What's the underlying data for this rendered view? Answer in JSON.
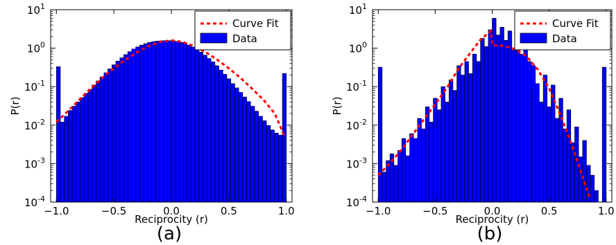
{
  "colors": {
    "bar": "#0000ff",
    "fit": "#ff0000"
  },
  "chart_data": [
    {
      "type": "bar",
      "panel_label": "(a)",
      "xlabel": "Reciprocity (r)",
      "ylabel": "P(r)",
      "xlim": [
        -1.05,
        1.05
      ],
      "ylim": [
        0.0001,
        10
      ],
      "yscale": "log",
      "xticks": [
        "−1.0",
        "−0.5",
        "0.0",
        "0.5",
        "1.0"
      ],
      "yticks": [
        {
          "base": "10",
          "exp": "-4"
        },
        {
          "base": "10",
          "exp": "-3"
        },
        {
          "base": "10",
          "exp": "-2"
        },
        {
          "base": "10",
          "exp": "-1"
        },
        {
          "base": "10",
          "exp": "0"
        },
        {
          "base": "10",
          "exp": "1"
        }
      ],
      "legend": {
        "position": "top-right",
        "fit_label": "Curve Fit",
        "data_label": "Data"
      },
      "bin_width": 0.0345,
      "bins_x": [
        -1.0,
        -0.966,
        -0.931,
        -0.897,
        -0.862,
        -0.828,
        -0.793,
        -0.759,
        -0.724,
        -0.69,
        -0.655,
        -0.621,
        -0.586,
        -0.552,
        -0.517,
        -0.483,
        -0.448,
        -0.414,
        -0.379,
        -0.345,
        -0.31,
        -0.276,
        -0.241,
        -0.207,
        -0.172,
        -0.138,
        -0.103,
        -0.069,
        -0.034,
        0.0,
        0.034,
        0.069,
        0.103,
        0.138,
        0.172,
        0.207,
        0.241,
        0.276,
        0.31,
        0.345,
        0.379,
        0.414,
        0.448,
        0.483,
        0.517,
        0.552,
        0.586,
        0.621,
        0.655,
        0.69,
        0.724,
        0.759,
        0.793,
        0.828,
        0.862,
        0.897,
        0.931,
        0.966
      ],
      "bins_y": [
        0.33,
        0.012,
        0.017,
        0.024,
        0.031,
        0.04,
        0.052,
        0.067,
        0.085,
        0.11,
        0.14,
        0.18,
        0.23,
        0.29,
        0.37,
        0.46,
        0.56,
        0.68,
        0.81,
        0.95,
        1.08,
        1.2,
        1.31,
        1.41,
        1.48,
        1.53,
        1.56,
        1.57,
        1.57,
        1.55,
        1.5,
        1.42,
        1.32,
        1.2,
        1.07,
        0.93,
        0.79,
        0.66,
        0.54,
        0.44,
        0.35,
        0.27,
        0.21,
        0.16,
        0.12,
        0.093,
        0.071,
        0.054,
        0.041,
        0.031,
        0.023,
        0.017,
        0.013,
        0.0098,
        0.0075,
        0.0062,
        0.0055,
        0.22
      ],
      "fit_x": [
        -1.0,
        -0.9,
        -0.8,
        -0.7,
        -0.6,
        -0.5,
        -0.4,
        -0.3,
        -0.2,
        -0.1,
        0.0,
        0.1,
        0.2,
        0.3,
        0.4,
        0.5,
        0.6,
        0.7,
        0.8,
        0.9,
        0.98
      ],
      "fit_y": [
        0.012,
        0.023,
        0.046,
        0.09,
        0.17,
        0.3,
        0.5,
        0.78,
        1.12,
        1.45,
        1.6,
        1.45,
        1.12,
        0.78,
        0.5,
        0.3,
        0.17,
        0.09,
        0.046,
        0.02,
        0.0055
      ]
    },
    {
      "type": "bar",
      "panel_label": "(b)",
      "xlabel": "Reciprocity (r)",
      "ylabel": "P(r)",
      "xlim": [
        -1.05,
        1.05
      ],
      "ylim": [
        0.0001,
        10
      ],
      "yscale": "log",
      "xticks": [
        "−1.0",
        "−0.5",
        "0.0",
        "0.5",
        "1.0"
      ],
      "yticks": [
        {
          "base": "10",
          "exp": "-4"
        },
        {
          "base": "10",
          "exp": "-3"
        },
        {
          "base": "10",
          "exp": "-2"
        },
        {
          "base": "10",
          "exp": "-1"
        },
        {
          "base": "10",
          "exp": "0"
        },
        {
          "base": "10",
          "exp": "1"
        }
      ],
      "legend": {
        "position": "top-right",
        "fit_label": "Curve Fit",
        "data_label": "Data"
      },
      "bin_width": 0.0345,
      "bins_x": [
        -1.0,
        -0.966,
        -0.931,
        -0.897,
        -0.862,
        -0.828,
        -0.793,
        -0.759,
        -0.724,
        -0.69,
        -0.655,
        -0.621,
        -0.586,
        -0.552,
        -0.517,
        -0.483,
        -0.448,
        -0.414,
        -0.379,
        -0.345,
        -0.31,
        -0.276,
        -0.241,
        -0.207,
        -0.172,
        -0.138,
        -0.103,
        -0.069,
        -0.034,
        0.0,
        0.034,
        0.069,
        0.103,
        0.138,
        0.172,
        0.207,
        0.241,
        0.276,
        0.31,
        0.345,
        0.379,
        0.414,
        0.448,
        0.483,
        0.517,
        0.552,
        0.586,
        0.621,
        0.655,
        0.69,
        0.724,
        0.759,
        0.793,
        0.828,
        0.862,
        0.897,
        0.931,
        0.966
      ],
      "bins_y": [
        0.32,
        0.0006,
        0.0012,
        0.0018,
        0.0009,
        0.0022,
        0.0045,
        0.0016,
        0.006,
        0.0045,
        0.015,
        0.008,
        0.03,
        0.012,
        0.05,
        0.025,
        0.1,
        0.04,
        0.15,
        0.08,
        0.35,
        0.2,
        0.45,
        0.22,
        0.7,
        0.45,
        1.8,
        1.1,
        3.0,
        6.0,
        2.2,
        3.5,
        1.6,
        2.8,
        0.9,
        1.9,
        0.7,
        1.1,
        0.45,
        0.35,
        0.12,
        0.04,
        0.2,
        0.03,
        0.11,
        0.015,
        0.05,
        0.008,
        0.025,
        0.0035,
        0.009,
        0.0015,
        0.004,
        0.0009,
        0.0005,
        0.0002,
        0.0001,
        0.32
      ],
      "fit_x": [
        -1.0,
        -0.9,
        -0.8,
        -0.7,
        -0.6,
        -0.5,
        -0.4,
        -0.3,
        -0.2,
        -0.1,
        -0.01,
        0.0,
        0.1,
        0.2,
        0.3,
        0.4,
        0.5,
        0.6,
        0.7,
        0.8,
        0.86
      ],
      "fit_y": [
        0.0005,
        0.001,
        0.0022,
        0.0055,
        0.014,
        0.035,
        0.09,
        0.28,
        0.7,
        1.7,
        2.8,
        1.2,
        1.15,
        0.95,
        0.62,
        0.28,
        0.09,
        0.018,
        0.003,
        0.0004,
        0.00012
      ]
    }
  ]
}
